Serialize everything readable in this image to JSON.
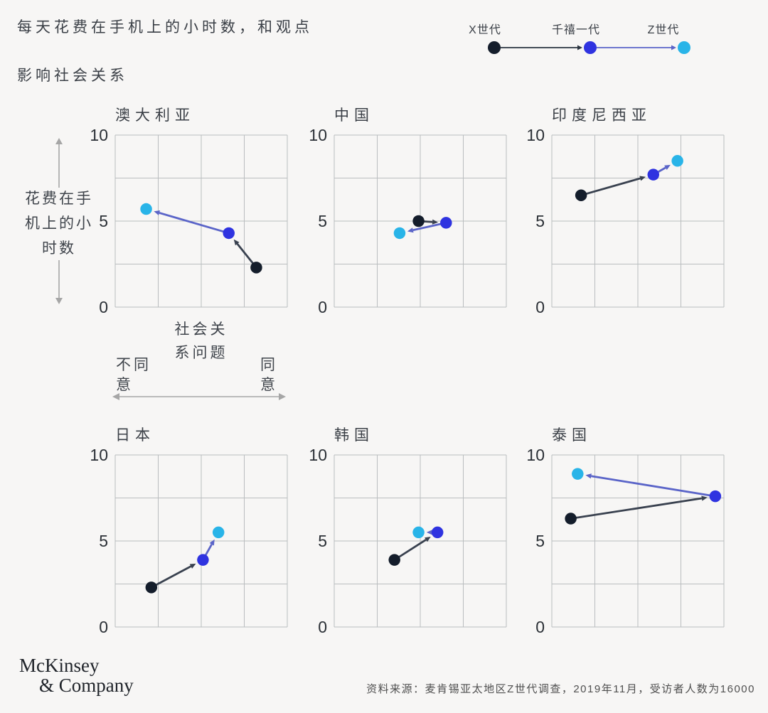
{
  "title": {
    "line1": "每天花费在手机上的小时数，和观点",
    "line2": "影响社会关系"
  },
  "legend": {
    "items": [
      {
        "label": "X世代",
        "color": "#141d2b"
      },
      {
        "label": "千禧一代",
        "color": "#2f33e0"
      },
      {
        "label": "Z世代",
        "color": "#29b4e8"
      }
    ],
    "connector_colors": [
      "#2b3440",
      "#5a64c8"
    ]
  },
  "axis": {
    "y_label": "花费在手机上的小时数",
    "y_label_lines": [
      "花费在手",
      "机上的小",
      "时数"
    ],
    "y_ticks": [
      "10",
      "5",
      "0"
    ],
    "x_caption_lines": [
      "社会关",
      "系问题"
    ],
    "x_left_lines": [
      "不同",
      "意"
    ],
    "x_right_lines": [
      "同",
      "意"
    ]
  },
  "chart_data": {
    "type": "scatter",
    "title": "每天花费在手机上的小时数，和观点影响社会关系",
    "ylabel": "花费在手机上的小时数",
    "xlabel": "社会关系问题（不同意 → 同意）",
    "ylim": [
      0,
      10
    ],
    "xlim": [
      0,
      1
    ],
    "grid": true,
    "series_order": [
      "X世代",
      "千禧一代",
      "Z世代"
    ],
    "colors": {
      "gen_x_dot": "#141d2b",
      "millennial_dot": "#2f33e0",
      "gen_z_dot": "#29b4e8",
      "x_to_millennial_line": "#39414f",
      "millennial_to_z_line": "#5a64c8"
    },
    "charts": [
      {
        "country": "澳大利亚",
        "gen_x": {
          "x": 0.82,
          "y": 2.3
        },
        "millennial": {
          "x": 0.66,
          "y": 4.3
        },
        "gen_z": {
          "x": 0.18,
          "y": 5.7
        }
      },
      {
        "country": "中国",
        "gen_x": {
          "x": 0.49,
          "y": 5.0
        },
        "millennial": {
          "x": 0.65,
          "y": 4.9
        },
        "gen_z": {
          "x": 0.38,
          "y": 4.3
        }
      },
      {
        "country": "印度尼西亚",
        "gen_x": {
          "x": 0.17,
          "y": 6.5
        },
        "millennial": {
          "x": 0.59,
          "y": 7.7
        },
        "gen_z": {
          "x": 0.73,
          "y": 8.5
        }
      },
      {
        "country": "日本",
        "gen_x": {
          "x": 0.21,
          "y": 2.3
        },
        "millennial": {
          "x": 0.51,
          "y": 3.9
        },
        "gen_z": {
          "x": 0.6,
          "y": 5.5
        }
      },
      {
        "country": "韩国",
        "gen_x": {
          "x": 0.35,
          "y": 3.9
        },
        "millennial": {
          "x": 0.6,
          "y": 5.5
        },
        "gen_z": {
          "x": 0.49,
          "y": 5.5
        }
      },
      {
        "country": "泰国",
        "gen_x": {
          "x": 0.11,
          "y": 6.3
        },
        "millennial": {
          "x": 0.95,
          "y": 7.6
        },
        "gen_z": {
          "x": 0.15,
          "y": 8.9
        }
      }
    ]
  },
  "footer": {
    "logo_line1": "McKinsey",
    "logo_line2": "& Company",
    "source": "资料来源：麦肯锡亚太地区Z世代调查，2019年11月，受访者人数为16000"
  }
}
